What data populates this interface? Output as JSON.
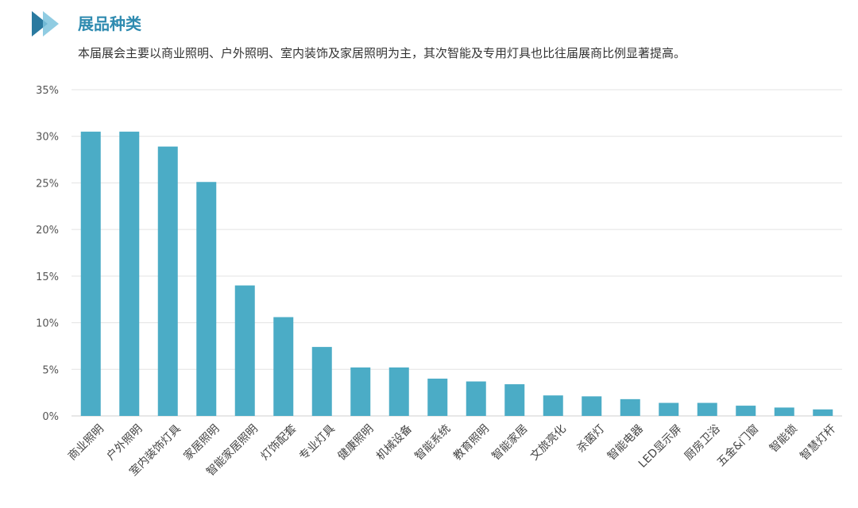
{
  "header": {
    "title": "展品种类",
    "subtitle": "本届展会主要以商业照明、户外照明、室内装饰及家居照明为主，其次智能及专用灯具也比往届展商比例显著提高。"
  },
  "colors": {
    "bar": "#4bacc6",
    "accent": "#2f8bb0",
    "grid": "#e3e3e3"
  },
  "chart_data": {
    "type": "bar",
    "categories": [
      "商业照明",
      "户外照明",
      "室内装饰灯具",
      "家居照明",
      "智能家居照明",
      "灯饰配套",
      "专业灯具",
      "健康照明",
      "机械设备",
      "智能系统",
      "教育照明",
      "智能家居",
      "文旅亮化",
      "杀菌灯",
      "智能电器",
      "LED显示屏",
      "厨房卫浴",
      "五金&门窗",
      "智能锁",
      "智慧灯杆"
    ],
    "values": [
      30.5,
      30.5,
      28.9,
      25.1,
      14.0,
      10.6,
      7.4,
      5.2,
      5.2,
      4.0,
      3.7,
      3.4,
      2.2,
      2.1,
      1.8,
      1.4,
      1.4,
      1.1,
      0.9,
      0.7
    ],
    "yticks": [
      "0%",
      "5%",
      "10%",
      "15%",
      "20%",
      "25%",
      "30%",
      "35%"
    ],
    "ylim": [
      0,
      35
    ],
    "grid": true
  }
}
